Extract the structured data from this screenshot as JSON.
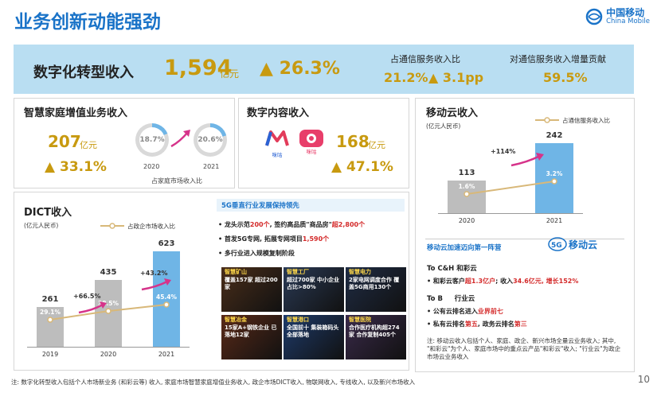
{
  "header": {
    "title": "业务创新动能强劲",
    "logo_cn": "中国移动",
    "logo_en": "China Mobile"
  },
  "summary": {
    "label": "数字化转型收入",
    "value": "1,594",
    "unit": "亿元",
    "growth": "▲ 26.3%",
    "share_label": "占通信服务收入比",
    "share_value": "21.2%",
    "share_change": "▲ 3.1pp",
    "contrib_label": "对通信服务收入增量贡献",
    "contrib_value": "59.5%"
  },
  "smart_home": {
    "title": "智慧家庭增值业务收入",
    "value": "207",
    "unit": "亿元",
    "growth": "▲ 33.1%",
    "ring_2020": "18.7%",
    "ring_2021": "20.6%",
    "ring_2020_fill": 0.187,
    "ring_2021_fill": 0.206,
    "year_2020": "2020",
    "year_2021": "2021",
    "caption": "占家庭市场收入比"
  },
  "digital_content": {
    "title": "数字内容收入",
    "app1_label": "咪咕",
    "app2_label": "咪咕",
    "value": "168",
    "unit": "亿元",
    "growth": "▲ 47.1%"
  },
  "mobile_cloud": {
    "title": "移动云收入",
    "unit_label": "(亿元人民币)",
    "legend": "占通信服务收入比",
    "growth_label": "+114%",
    "section_title": "移动云加速迈向第一阵营",
    "brand": "移动云",
    "ch_title": "To C&H 和彩云",
    "ch_bullet_a": "和彩云客户",
    "ch_bullet_b": "超1.3亿户",
    "ch_bullet_c": "; 收入",
    "ch_bullet_d": "34.6亿元",
    "ch_bullet_e": ", 增长152%",
    "tob_title": "To B     行业云",
    "b1_a": "公有云排名进入",
    "b1_b": "业界前七",
    "b2_a": "私有云排名",
    "b2_b": "第五",
    "b2_c": ", 政务云排名",
    "b2_d": "第三",
    "note": "注: 移动云收入包括个人、家庭、政企、新兴市场全量云业务收入; 其中, \"和彩云\"为个人、家庭市场中的重点云产品\"和彩云\"收入; \"行业云\"为政企市场云业务收入"
  },
  "dict": {
    "title": "DICT收入",
    "unit_label": "(亿元人民币)",
    "legend": "占政企市场收入比",
    "growth_1": "+66.5%",
    "growth_2": "+43.2%"
  },
  "vertical": {
    "title": "5G垂直行业发展保持领先",
    "b1_a": "龙头示范",
    "b1_b": "200个",
    "b1_c": ", 签约高品质\"商品房\"",
    "b1_d": "超2,800个",
    "b2_a": "首发5G专网, 拓展专网项目",
    "b2_b": "1,590个",
    "b3": "多行业进入规模复制阶段",
    "tiles": [
      {
        "name": "智慧矿山",
        "text": "覆盖157家 超过200家"
      },
      {
        "name": "智慧工厂",
        "text": "超过700家 中小企业占比>80%"
      },
      {
        "name": "智慧电力",
        "text": "2家电网调度合作 覆盖5G商用130个"
      },
      {
        "name": "智慧冶金",
        "text": "15家A+钢铁企业 已落地12家"
      },
      {
        "name": "智慧港口",
        "text": "全国前十 集装箱码头全部落地"
      },
      {
        "name": "智慧医院",
        "text": "合作医疗机构超274家 合作复制405个"
      }
    ]
  },
  "footer": {
    "note": "注: 数字化转型收入包括个人市场新业务 (和彩云等) 收入, 家庭市场智慧家庭增值业务收入, 政企市场DICT收入, 物联网收入, 专线收入, 以及新兴市场收入",
    "page": "10"
  },
  "colors": {
    "brand_blue": "#1a73c8",
    "gold": "#c89a10",
    "band": "#b9def2",
    "bar_gray": "#bdbdbd",
    "bar_blue": "#6fb5e6",
    "line_tan": "#d8b879"
  },
  "chart_data": [
    {
      "type": "bar",
      "title": "移动云收入",
      "categories": [
        "2020",
        "2021"
      ],
      "values": [
        113,
        242
      ],
      "value_labels": [
        "113",
        "242"
      ],
      "share_labels": [
        "1.6%",
        "3.2%"
      ],
      "share_values": [
        1.6,
        3.2
      ],
      "ylim": [
        0,
        260
      ]
    },
    {
      "type": "bar",
      "title": "DICT收入",
      "categories": [
        "2019",
        "2020",
        "2021"
      ],
      "values": [
        261,
        435,
        623
      ],
      "value_labels": [
        "261",
        "435",
        "623"
      ],
      "share_labels": [
        "29.1%",
        "38.5%",
        "45.4%"
      ],
      "share_values": [
        29.1,
        38.5,
        45.4
      ],
      "ylim": [
        0,
        650
      ]
    }
  ]
}
